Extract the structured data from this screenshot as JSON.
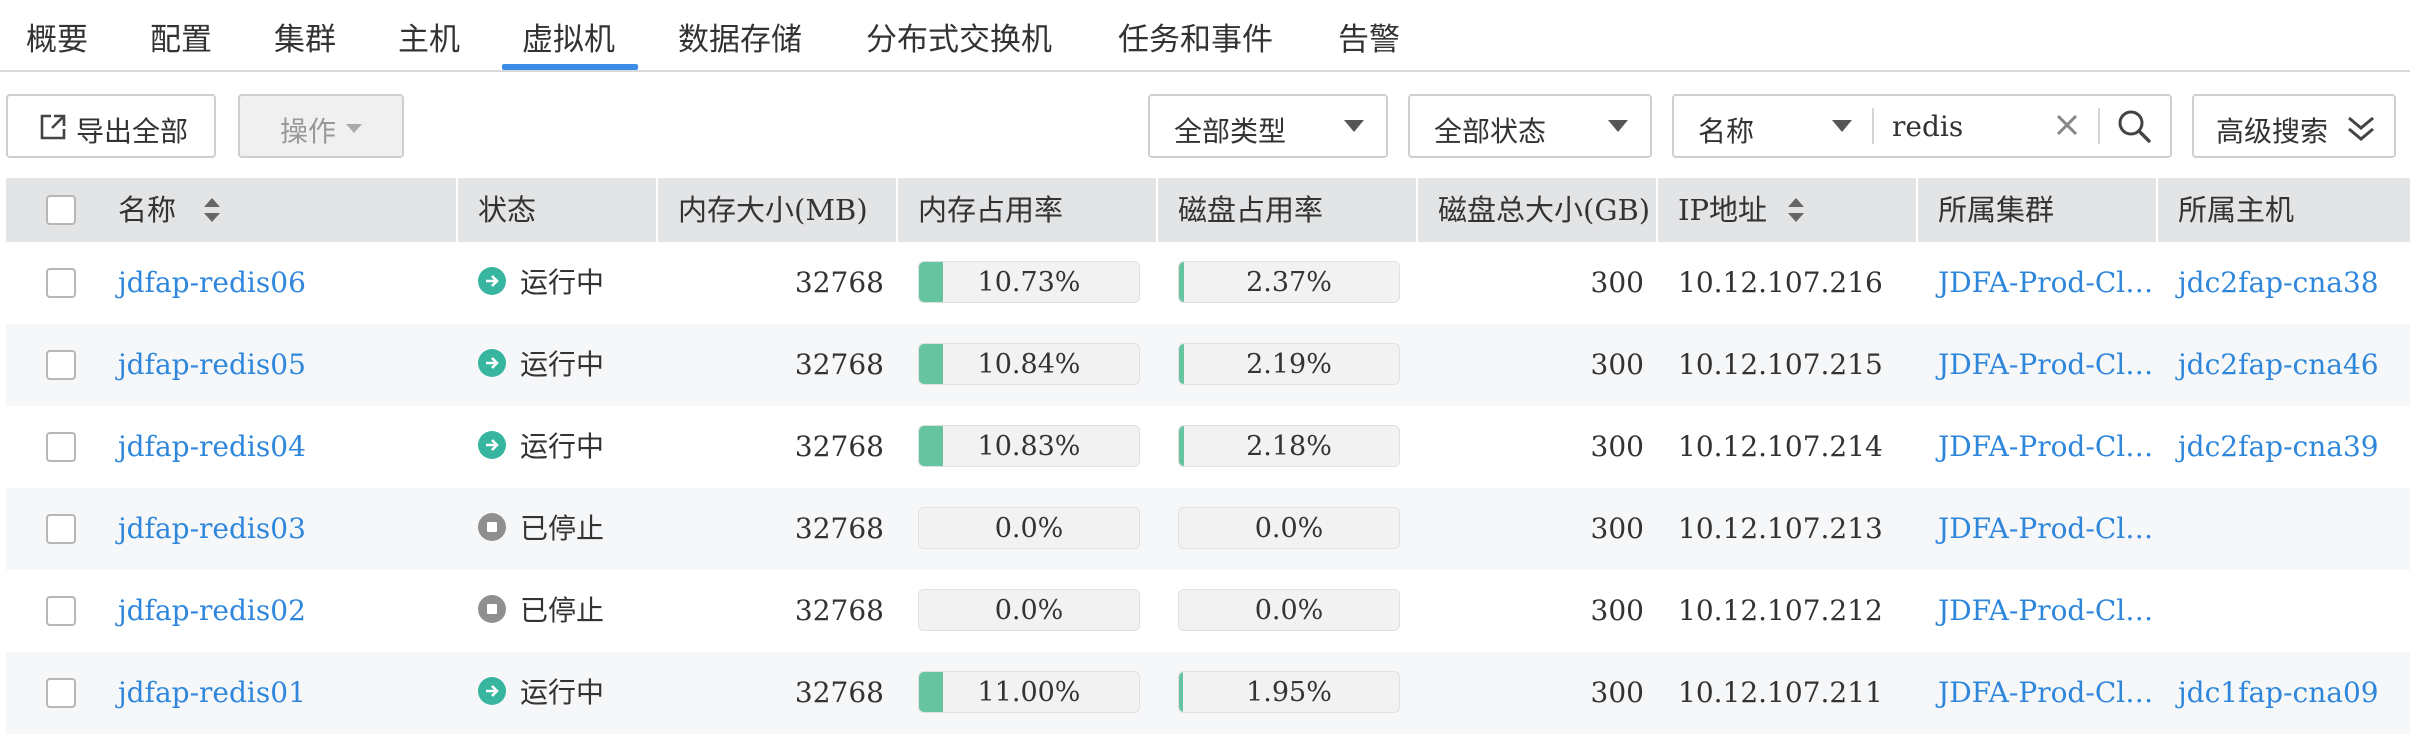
{
  "tabs": [
    {
      "label": "概要"
    },
    {
      "label": "配置"
    },
    {
      "label": "集群"
    },
    {
      "label": "主机"
    },
    {
      "label": "虚拟机",
      "active": true
    },
    {
      "label": "数据存储"
    },
    {
      "label": "分布式交换机"
    },
    {
      "label": "任务和事件"
    },
    {
      "label": "告警"
    }
  ],
  "toolbar": {
    "export_label": "导出全部",
    "action_label": "操作",
    "type_filter": "全部类型",
    "status_filter": "全部状态",
    "field_select": "名称",
    "search_value": "redis",
    "advanced_label": "高级搜索"
  },
  "columns": {
    "name": "名称",
    "status": "状态",
    "memory": "内存大小(MB)",
    "mem_usage": "内存占用率",
    "disk_usage": "磁盘占用率",
    "disk_total": "磁盘总大小(GB)",
    "ip": "IP地址",
    "cluster": "所属集群",
    "host": "所属主机"
  },
  "colors": {
    "link": "#2f87dc",
    "running": "#37b59e",
    "stopped": "#8f8f8f",
    "bar_fill": "#66c4a1",
    "tab_active": "#3a8ee6"
  },
  "rows": [
    {
      "name": "jdfap-redis06",
      "status": "运行中",
      "state": "running",
      "memory": "32768",
      "mem_usage": "10.73%",
      "mem_pct": 10.73,
      "disk_usage": "2.37%",
      "disk_pct": 2.37,
      "disk_total": "300",
      "ip": "10.12.107.216",
      "cluster": "JDFA-Prod-Cl…",
      "host": "jdc2fap-cna38"
    },
    {
      "name": "jdfap-redis05",
      "status": "运行中",
      "state": "running",
      "memory": "32768",
      "mem_usage": "10.84%",
      "mem_pct": 10.84,
      "disk_usage": "2.19%",
      "disk_pct": 2.19,
      "disk_total": "300",
      "ip": "10.12.107.215",
      "cluster": "JDFA-Prod-Cl…",
      "host": "jdc2fap-cna46"
    },
    {
      "name": "jdfap-redis04",
      "status": "运行中",
      "state": "running",
      "memory": "32768",
      "mem_usage": "10.83%",
      "mem_pct": 10.83,
      "disk_usage": "2.18%",
      "disk_pct": 2.18,
      "disk_total": "300",
      "ip": "10.12.107.214",
      "cluster": "JDFA-Prod-Cl…",
      "host": "jdc2fap-cna39"
    },
    {
      "name": "jdfap-redis03",
      "status": "已停止",
      "state": "stopped",
      "memory": "32768",
      "mem_usage": "0.0%",
      "mem_pct": 0,
      "disk_usage": "0.0%",
      "disk_pct": 0,
      "disk_total": "300",
      "ip": "10.12.107.213",
      "cluster": "JDFA-Prod-Cl…",
      "host": ""
    },
    {
      "name": "jdfap-redis02",
      "status": "已停止",
      "state": "stopped",
      "memory": "32768",
      "mem_usage": "0.0%",
      "mem_pct": 0,
      "disk_usage": "0.0%",
      "disk_pct": 0,
      "disk_total": "300",
      "ip": "10.12.107.212",
      "cluster": "JDFA-Prod-Cl…",
      "host": ""
    },
    {
      "name": "jdfap-redis01",
      "status": "运行中",
      "state": "running",
      "memory": "32768",
      "mem_usage": "11.00%",
      "mem_pct": 11.0,
      "disk_usage": "1.95%",
      "disk_pct": 1.95,
      "disk_total": "300",
      "ip": "10.12.107.211",
      "cluster": "JDFA-Prod-Cl…",
      "host": "jdc1fap-cna09"
    }
  ]
}
